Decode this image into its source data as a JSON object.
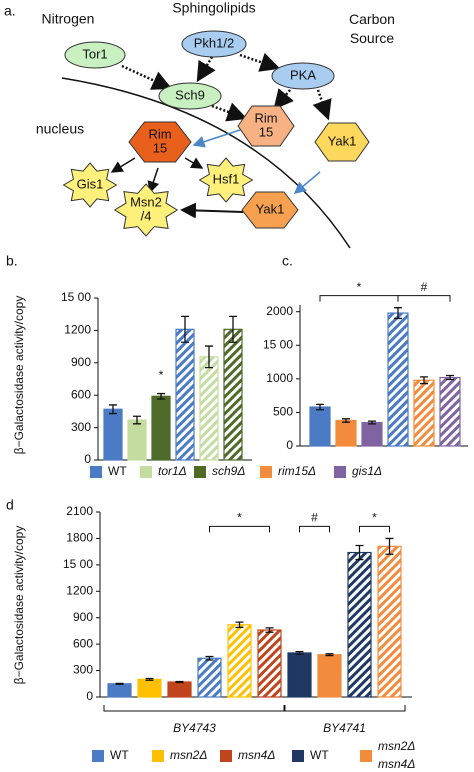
{
  "diagram": {
    "panel_label": "a.",
    "labels": [
      [
        "Nitrogen"
      ],
      [
        "Sphingolipids"
      ],
      [
        "Carbon",
        "Source"
      ],
      [
        "nucleus"
      ]
    ],
    "nodes": [
      {
        "lines": [
          "Tor1"
        ]
      },
      {
        "lines": [
          "Pkh1/2"
        ]
      },
      {
        "lines": [
          "Sch9"
        ]
      },
      {
        "lines": [
          "PKA"
        ]
      },
      {
        "lines": [
          "Rim",
          "15"
        ]
      },
      {
        "lines": [
          "Yak1"
        ]
      },
      {
        "lines": [
          "Rim",
          "15"
        ]
      },
      {
        "lines": [
          "Gis1"
        ]
      },
      {
        "lines": [
          "Hsf1"
        ]
      },
      {
        "lines": [
          "Msn2",
          "/4"
        ]
      },
      {
        "lines": [
          "Yak1"
        ]
      }
    ]
  },
  "chart_data": [
    {
      "type": "bar",
      "panel_label": "b.",
      "y_label": "β−Galactosidase activity/copy",
      "values": [
        470,
        370,
        590,
        1210,
        955,
        1210
      ],
      "errors": [
        40,
        35,
        25,
        120,
        100,
        120
      ],
      "colors": [
        "#4a7bc4",
        "#c5dca0",
        "#4e6b2a",
        "#4a7bc4",
        "#c5dca0",
        "#4e6b2a"
      ],
      "hatched": [
        false,
        false,
        false,
        true,
        true,
        true
      ],
      "ylim": [
        0,
        1500
      ],
      "yticks": [
        0,
        300,
        600,
        900,
        1200,
        {
          "value": 1500,
          "label": "15 00"
        }
      ],
      "annotations": [
        "*"
      ],
      "legend": [
        {
          "name": "WT",
          "color": "#4a7bc4",
          "italic": false
        },
        {
          "name": "tor1Δ",
          "color": "#c5dca0",
          "italic": true
        },
        {
          "name": "sch9Δ",
          "color": "#4e6b2a",
          "italic": true
        },
        {
          "name": "rim15Δ",
          "color": "#f28c3c",
          "italic": true
        },
        {
          "name": "gis1Δ",
          "color": "#8064a2",
          "italic": true
        }
      ]
    },
    {
      "type": "bar",
      "panel_label": "c.",
      "values": [
        580,
        380,
        350,
        1980,
        980,
        1020
      ],
      "errors": [
        40,
        25,
        20,
        80,
        50,
        30
      ],
      "colors": [
        "#4a7bc4",
        "#f28c3c",
        "#8064a2",
        "#4a7bc4",
        "#f28c3c",
        "#8064a2"
      ],
      "hatched": [
        false,
        false,
        false,
        true,
        true,
        true
      ],
      "ylim": [
        0,
        2100
      ],
      "yticks": [
        0,
        500,
        1000,
        {
          "value": 1500,
          "label": "15 00"
        },
        2000
      ],
      "annotations": [
        "*",
        "#"
      ]
    },
    {
      "type": "bar",
      "panel_label": "d",
      "y_label": "β−Galactosidase activity/copy",
      "values": [
        150,
        200,
        170,
        440,
        820,
        760,
        500,
        480,
        1640,
        1710
      ],
      "errors": [
        5,
        10,
        5,
        20,
        30,
        25,
        15,
        10,
        80,
        90
      ],
      "colors": [
        "#4a7bc4",
        "#fec000",
        "#c0441c",
        "#4a7bc4",
        "#fec000",
        "#c0441c",
        "#1f3864",
        "#f28c3c",
        "#1f3864",
        "#f28c3c"
      ],
      "hatched": [
        false,
        false,
        false,
        true,
        true,
        true,
        false,
        false,
        true,
        true
      ],
      "ylim": [
        0,
        2100
      ],
      "yticks": [
        0,
        300,
        600,
        900,
        1200,
        {
          "value": 1500,
          "label": "15 00"
        },
        1800,
        2100
      ],
      "annotations": [
        "*",
        "#",
        "*"
      ],
      "groups": [
        "BY4743",
        "BY4741"
      ],
      "legend": [
        {
          "name": [
            "WT"
          ],
          "color": "#4a7bc4",
          "italic": false
        },
        {
          "name": [
            "msn2Δ"
          ],
          "color": "#fec000",
          "italic": true
        },
        {
          "name": [
            "msn4Δ"
          ],
          "color": "#c0441c",
          "italic": true
        },
        {
          "name": [
            "WT"
          ],
          "color": "#1f3864",
          "italic": false
        },
        {
          "name": [
            "msn2Δ",
            "msn4Δ"
          ],
          "color": "#f28c3c",
          "italic": true
        }
      ]
    }
  ]
}
